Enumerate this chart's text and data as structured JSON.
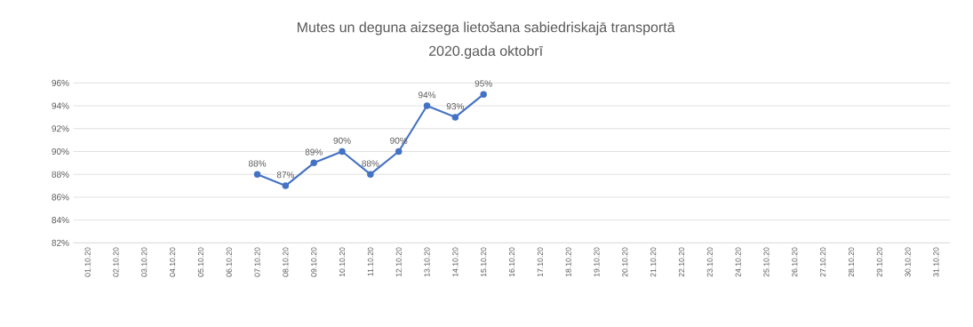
{
  "chart_data": {
    "type": "line",
    "title": "Mutes un deguna aizsega lietošana sabiedriskajā transportā",
    "subtitle": "2020.gada oktobrī",
    "categories": [
      "01.10.20",
      "02.10.20",
      "03.10.20",
      "04.10.20",
      "05.10.20",
      "06.10.20",
      "07.10.20",
      "08.10.20",
      "09.10.20",
      "10.10.20",
      "11.10.20",
      "12.10.20",
      "13.10.20",
      "14.10.20",
      "15.10.20",
      "16.10.20",
      "17.10.20",
      "18.10.20",
      "19.10.20",
      "20.10.20",
      "21.10.20",
      "22.10.20",
      "23.10.20",
      "24.10.20",
      "25.10.20",
      "26.10.20",
      "27.10.20",
      "28.10.20",
      "29.10.20",
      "30.10.20",
      "31.10.20"
    ],
    "values": [
      null,
      null,
      null,
      null,
      null,
      null,
      88,
      87,
      89,
      90,
      88,
      90,
      94,
      93,
      95,
      null,
      null,
      null,
      null,
      null,
      null,
      null,
      null,
      null,
      null,
      null,
      null,
      null,
      null,
      null,
      null
    ],
    "value_labels": [
      null,
      null,
      null,
      null,
      null,
      null,
      "88%",
      "87%",
      "89%",
      "90%",
      "88%",
      "90%",
      "94%",
      "93%",
      "95%",
      null,
      null,
      null,
      null,
      null,
      null,
      null,
      null,
      null,
      null,
      null,
      null,
      null,
      null,
      null,
      null
    ],
    "color": "#4472c4",
    "marker": "circle",
    "line_style": "solid",
    "grid": "y",
    "ylim": [
      82,
      96
    ],
    "yticks": [
      {
        "value": 82,
        "label": "82%"
      },
      {
        "value": 84,
        "label": "84%"
      },
      {
        "value": 86,
        "label": "86%"
      },
      {
        "value": 88,
        "label": "88%"
      },
      {
        "value": 90,
        "label": "90%"
      },
      {
        "value": 92,
        "label": "92%"
      },
      {
        "value": 94,
        "label": "94%"
      },
      {
        "value": 96,
        "label": "96%"
      }
    ]
  }
}
